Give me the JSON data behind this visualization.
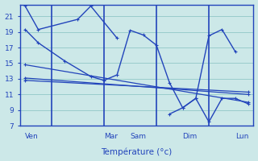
{
  "bg_color": "#cce8e8",
  "grid_color": "#99cccc",
  "line_color": "#2244bb",
  "xlabel": "Température (°c)",
  "ylim": [
    7,
    22.5
  ],
  "yticks": [
    7,
    9,
    11,
    13,
    15,
    17,
    19,
    21
  ],
  "day_separators": [
    1.0,
    3.0,
    5.0,
    7.0
  ],
  "day_labels": [
    {
      "label": "Ven",
      "x": 0.0
    },
    {
      "label": "Mar",
      "x": 3.0
    },
    {
      "label": "Sam",
      "x": 4.0
    },
    {
      "label": "Dim",
      "x": 6.0
    },
    {
      "label": "Lun",
      "x": 8.0
    }
  ],
  "xlim": [
    -0.2,
    8.7
  ],
  "lines": [
    {
      "x": [
        0.0,
        0.5,
        2.0,
        2.5,
        3.5
      ],
      "y": [
        22.3,
        19.3,
        20.6,
        22.3,
        18.2
      ],
      "lw": 1.0
    },
    {
      "x": [
        0.0,
        0.5,
        1.5,
        2.5,
        3.0,
        3.5,
        4.0,
        4.5,
        5.0,
        5.5,
        6.0,
        6.5,
        7.0,
        7.5,
        8.0
      ],
      "y": [
        19.3,
        17.6,
        15.3,
        13.3,
        12.8,
        13.5,
        19.2,
        18.6,
        17.3,
        12.5,
        9.3,
        10.5,
        18.5,
        19.3,
        16.5
      ],
      "lw": 1.0
    },
    {
      "x": [
        0.0,
        8.5
      ],
      "y": [
        14.8,
        10.0
      ],
      "lw": 0.9
    },
    {
      "x": [
        0.0,
        8.5
      ],
      "y": [
        13.1,
        11.0
      ],
      "lw": 0.9
    },
    {
      "x": [
        0.0,
        8.5
      ],
      "y": [
        12.8,
        11.3
      ],
      "lw": 0.9
    },
    {
      "x": [
        5.5,
        6.0,
        6.5,
        7.0,
        7.5,
        8.0,
        8.5
      ],
      "y": [
        8.5,
        9.3,
        10.5,
        7.5,
        10.5,
        10.5,
        9.8
      ],
      "lw": 1.0
    }
  ]
}
